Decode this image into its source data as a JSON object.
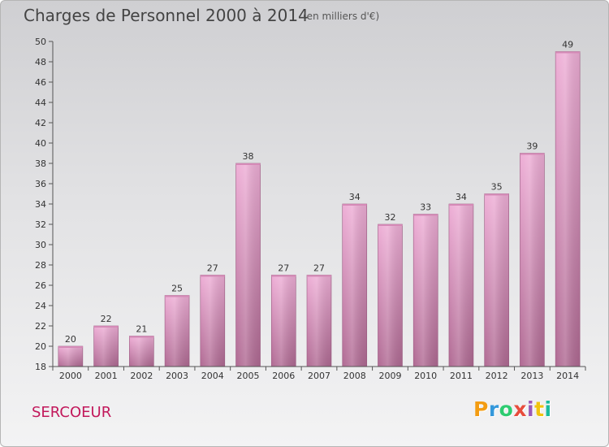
{
  "header": {
    "title": "Charges de Personnel 2000 à 2014",
    "subtitle": "(en milliers d'€)"
  },
  "footer": {
    "town": "SERCOEUR",
    "logo_letters": [
      "P",
      "r",
      "o",
      "x",
      "i",
      "t",
      "i"
    ],
    "logo_colors": [
      "#f39c12",
      "#3498db",
      "#2ecc71",
      "#e74c3c",
      "#9b59b6",
      "#f1c40f",
      "#1abc9c"
    ]
  },
  "colors": {
    "bar_top": "#eeaed6",
    "bar_bottom": "#b06a93",
    "axis": "#555555"
  },
  "chart_data": {
    "type": "bar",
    "title": "Charges de Personnel 2000 à 2014",
    "subtitle": "(en milliers d'€)",
    "xlabel": "",
    "ylabel": "",
    "categories": [
      "2000",
      "2001",
      "2002",
      "2003",
      "2004",
      "2005",
      "2006",
      "2007",
      "2008",
      "2009",
      "2010",
      "2011",
      "2012",
      "2013",
      "2014"
    ],
    "values": [
      20,
      22,
      21,
      25,
      27,
      38,
      27,
      27,
      34,
      32,
      33,
      34,
      35,
      39,
      49
    ],
    "ylim": [
      18,
      50
    ],
    "yticks": [
      18,
      20,
      22,
      24,
      26,
      28,
      30,
      32,
      34,
      36,
      38,
      40,
      42,
      44,
      46,
      48,
      50
    ],
    "grid": false,
    "legend": "none"
  }
}
